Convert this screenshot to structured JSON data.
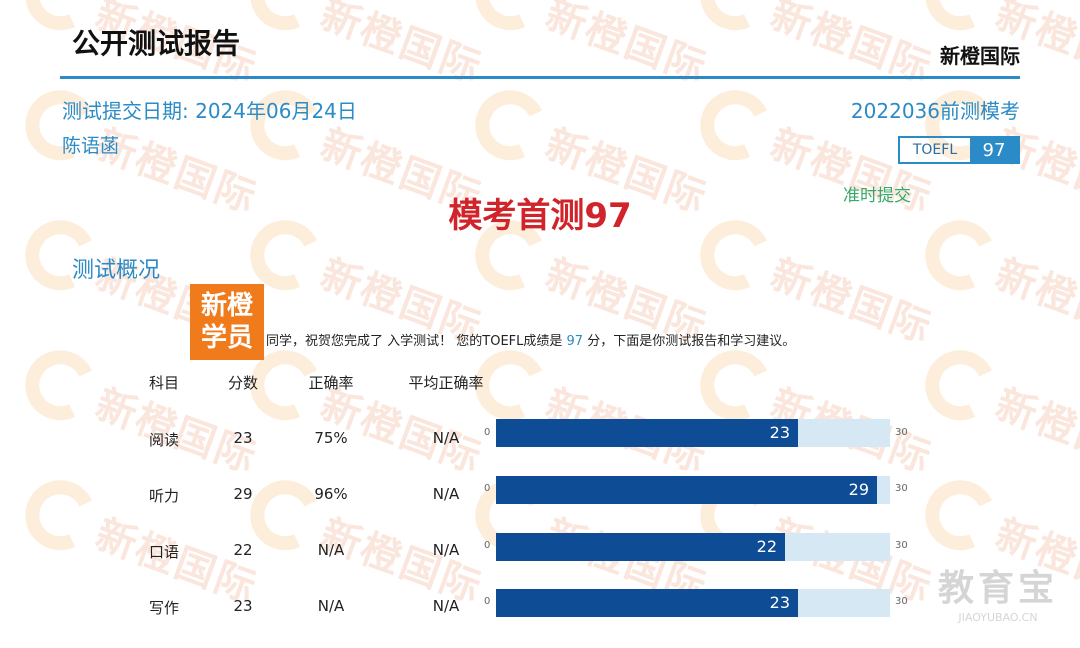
{
  "header": {
    "title": "公开测试报告",
    "brand": "新橙国际"
  },
  "report": {
    "date_label": "测试提交日期: 2024年06月24日",
    "exam_label": "2022036前测模考",
    "student_name": "陈语菡",
    "score_box": {
      "label": "TOEFL",
      "value": "97"
    },
    "status": "准时提交",
    "headline": "模考首测97"
  },
  "overview": {
    "section_title": "测试概况",
    "badge": [
      "新橙",
      "学员"
    ],
    "intro_pre": "同学，祝贺您完成了 入学测试！ 您的TOEFL成绩是 ",
    "intro_score": "97",
    "intro_post": " 分，下面是你测试报告和学习建议。"
  },
  "table": {
    "headers": {
      "subject": "科目",
      "score": "分数",
      "rate": "正确率",
      "avg_rate": "平均正确率"
    },
    "rows": [
      {
        "subject": "阅读",
        "score": "23",
        "rate": "75%",
        "avg_rate": "N/A"
      },
      {
        "subject": "听力",
        "score": "29",
        "rate": "96%",
        "avg_rate": "N/A"
      },
      {
        "subject": "口语",
        "score": "22",
        "rate": "N/A",
        "avg_rate": "N/A"
      },
      {
        "subject": "写作",
        "score": "23",
        "rate": "N/A",
        "avg_rate": "N/A"
      }
    ],
    "bar_min": "0",
    "bar_max": "30"
  },
  "chart_data": {
    "type": "bar",
    "categories": [
      "阅读",
      "听力",
      "口语",
      "写作"
    ],
    "values": [
      23,
      29,
      22,
      23
    ],
    "xlim": [
      0,
      30
    ]
  },
  "watermark": {
    "text": "新橙国际"
  },
  "corner_watermark": {
    "text": "教育宝",
    "url": "JIAOYUBAO.CN"
  },
  "colors": {
    "accent": "#2a8bc6",
    "bar": "#0f4c96",
    "bar_track": "#d6e8f4",
    "headline": "#d0232a",
    "badge": "#f07b1c",
    "status": "#37a868"
  }
}
